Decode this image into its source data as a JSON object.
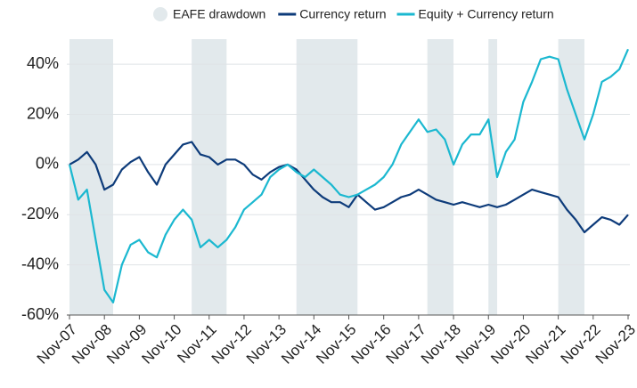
{
  "chart_data": {
    "type": "line",
    "x": [
      "Nov-07",
      "Feb-08",
      "May-08",
      "Aug-08",
      "Nov-08",
      "Feb-09",
      "May-09",
      "Aug-09",
      "Nov-09",
      "Feb-10",
      "May-10",
      "Aug-10",
      "Nov-10",
      "Feb-11",
      "May-11",
      "Aug-11",
      "Nov-11",
      "Feb-12",
      "May-12",
      "Aug-12",
      "Nov-12",
      "Feb-13",
      "May-13",
      "Aug-13",
      "Nov-13",
      "Feb-14",
      "May-14",
      "Aug-14",
      "Nov-14",
      "Feb-15",
      "May-15",
      "Aug-15",
      "Nov-15",
      "Feb-16",
      "May-16",
      "Aug-16",
      "Nov-16",
      "Feb-17",
      "May-17",
      "Aug-17",
      "Nov-17",
      "Feb-18",
      "May-18",
      "Aug-18",
      "Nov-18",
      "Feb-19",
      "May-19",
      "Aug-19",
      "Nov-19",
      "Feb-20",
      "May-20",
      "Aug-20",
      "Nov-20",
      "Feb-21",
      "May-21",
      "Aug-21",
      "Nov-21",
      "Feb-22",
      "May-22",
      "Aug-22",
      "Nov-22",
      "Feb-23",
      "May-23",
      "Aug-23",
      "Nov-23"
    ],
    "xticks": [
      "Nov-07",
      "Nov-08",
      "Nov-09",
      "Nov-10",
      "Nov-11",
      "Nov-12",
      "Nov-13",
      "Nov-14",
      "Nov-15",
      "Nov-16",
      "Nov-17",
      "Nov-18",
      "Nov-19",
      "Nov-20",
      "Nov-21",
      "Nov-22",
      "Nov-23"
    ],
    "series": [
      {
        "name": "Currency return",
        "color": "#0d3b7a",
        "values": [
          0,
          2,
          5,
          0,
          -10,
          -8,
          -2,
          1,
          3,
          -3,
          -8,
          0,
          4,
          8,
          9,
          4,
          3,
          0,
          2,
          2,
          0,
          -4,
          -6,
          -3,
          -1,
          0,
          -2,
          -6,
          -10,
          -13,
          -15,
          -15,
          -17,
          -12,
          -15,
          -18,
          -17,
          -15,
          -13,
          -12,
          -10,
          -12,
          -14,
          -15,
          -16,
          -15,
          -16,
          -17,
          -16,
          -17,
          -16,
          -14,
          -12,
          -10,
          -11,
          -12,
          -13,
          -18,
          -22,
          -27,
          -24,
          -21,
          -22,
          -24,
          -20
        ]
      },
      {
        "name": "Equity + Currency return",
        "color": "#1bb8d0",
        "values": [
          0,
          -14,
          -10,
          -30,
          -50,
          -55,
          -40,
          -32,
          -30,
          -35,
          -37,
          -28,
          -22,
          -18,
          -22,
          -33,
          -30,
          -33,
          -30,
          -25,
          -18,
          -15,
          -12,
          -5,
          -2,
          0,
          -3,
          -5,
          -2,
          -5,
          -8,
          -12,
          -13,
          -12,
          -10,
          -8,
          -5,
          0,
          8,
          13,
          18,
          13,
          14,
          10,
          0,
          8,
          12,
          12,
          18,
          -5,
          5,
          10,
          25,
          33,
          42,
          43,
          42,
          30,
          20,
          10,
          20,
          33,
          35,
          38,
          46
        ]
      }
    ],
    "shading": {
      "name": "EAFE drawdown",
      "color": "#e2e9ec",
      "ranges": [
        [
          "Nov-07",
          "Feb-09"
        ],
        [
          "May-11",
          "May-12"
        ],
        [
          "May-14",
          "Feb-16"
        ],
        [
          "Feb-18",
          "Nov-18"
        ],
        [
          "Nov-19",
          "Feb-20"
        ],
        [
          "Nov-21",
          "Aug-22"
        ]
      ]
    },
    "ylim": [
      -60,
      50
    ],
    "yticks": [
      {
        "value": -60,
        "label": "-60%"
      },
      {
        "value": -40,
        "label": "-40%"
      },
      {
        "value": -20,
        "label": "-20%"
      },
      {
        "value": 0,
        "label": "0%"
      },
      {
        "value": 20,
        "label": "20%"
      },
      {
        "value": 40,
        "label": "40%"
      }
    ],
    "grid": true
  }
}
